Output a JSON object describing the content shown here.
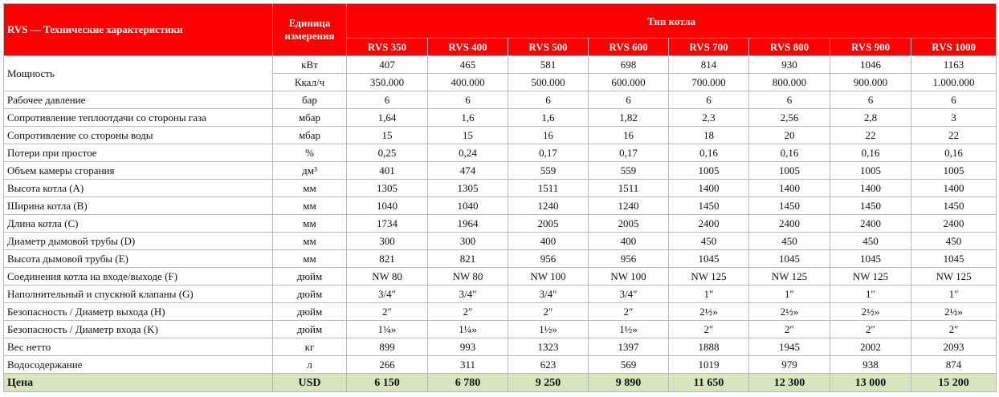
{
  "header": {
    "title": "RVS — Технические характеристики",
    "unit_label_line1": "Единица",
    "unit_label_line2": "измерения",
    "type_label": "Тип котла",
    "models": [
      "RVS 350",
      "RVS 400",
      "RVS 500",
      "RVS 600",
      "RVS 700",
      "RVS 800",
      "RVS 900",
      "RVS 1000"
    ]
  },
  "power": {
    "label": "Мощность",
    "rows": [
      {
        "unit": "кВт",
        "values": [
          "407",
          "465",
          "581",
          "698",
          "814",
          "930",
          "1046",
          "1163"
        ]
      },
      {
        "unit": "Ккал/ч",
        "values": [
          "350.000",
          "400.000",
          "500.000",
          "600.000",
          "700.000",
          "800.000",
          "900.000",
          "1.000.000"
        ]
      }
    ]
  },
  "rows": [
    {
      "label": "Рабочее давление",
      "unit": "бар",
      "values": [
        "6",
        "6",
        "6",
        "6",
        "6",
        "6",
        "6",
        "6"
      ]
    },
    {
      "label": "Сопротивление теплоотдачи со стороны газа",
      "unit": "мбар",
      "values": [
        "1,64",
        "1,6",
        "1,6",
        "1,82",
        "2,3",
        "2,56",
        "2,8",
        "3"
      ]
    },
    {
      "label": "Сопротивление со стороны воды",
      "unit": "мбар",
      "values": [
        "15",
        "15",
        "16",
        "16",
        "18",
        "20",
        "22",
        "22"
      ]
    },
    {
      "label": "Потери при простое",
      "unit": "%",
      "values": [
        "0,25",
        "0,24",
        "0,17",
        "0,17",
        "0,16",
        "0,16",
        "0,16",
        "0,16"
      ]
    },
    {
      "label": "Объем камеры сгорания",
      "unit": "дм³",
      "values": [
        "401",
        "474",
        "559",
        "559",
        "1005",
        "1005",
        "1005",
        "1005"
      ]
    },
    {
      "label": "Высота котла (A)",
      "unit": "мм",
      "values": [
        "1305",
        "1305",
        "1511",
        "1511",
        "1400",
        "1400",
        "1400",
        "1400"
      ]
    },
    {
      "label": "Ширина котла (B)",
      "unit": "мм",
      "values": [
        "1040",
        "1040",
        "1240",
        "1240",
        "1450",
        "1450",
        "1450",
        "1450"
      ]
    },
    {
      "label": "Длина котла (C)",
      "unit": "мм",
      "values": [
        "1734",
        "1964",
        "2005",
        "2005",
        "2400",
        "2400",
        "2400",
        "2400"
      ]
    },
    {
      "label": "Диаметр дымовой трубы (D)",
      "unit": "мм",
      "values": [
        "300",
        "300",
        "400",
        "400",
        "450",
        "450",
        "450",
        "450"
      ]
    },
    {
      "label": "Высота дымовой трубы (E)",
      "unit": "мм",
      "values": [
        "821",
        "821",
        "956",
        "956",
        "1045",
        "1045",
        "1045",
        "1045"
      ]
    },
    {
      "label": "Соединения котла на входе/выходе (F)",
      "unit": "дюйм",
      "values": [
        "NW 80",
        "NW 80",
        "NW 100",
        "NW 100",
        "NW 125",
        "NW 125",
        "NW 125",
        "NW 125"
      ]
    },
    {
      "label": "Наполнительный и спускной клапаны (G)",
      "unit": "дюйм",
      "values": [
        "3/4″",
        "3/4″",
        "3/4″",
        "3/4″",
        "1″",
        "1″",
        "1″",
        "1″"
      ]
    },
    {
      "label": "Безопасность / Диаметр выхода (H)",
      "unit": "дюйм",
      "values": [
        "2″",
        "2″",
        "2″",
        "2″",
        "2½»",
        "2½»",
        "2½»",
        "2½»"
      ]
    },
    {
      "label": "Безопасность / Диаметр входа (K)",
      "unit": "дюйм",
      "values": [
        "1¼»",
        "1¼»",
        "1½»",
        "1½»",
        "2″",
        "2″",
        "2″",
        "2″"
      ]
    },
    {
      "label": "Вес нетто",
      "unit": "кг",
      "values": [
        "899",
        "993",
        "1323",
        "1397",
        "1888",
        "1945",
        "2002",
        "2093"
      ]
    },
    {
      "label": "Водосодержание",
      "unit": "л",
      "values": [
        "266",
        "311",
        "623",
        "569",
        "1019",
        "979",
        "938",
        "874"
      ]
    }
  ],
  "price": {
    "label": "Цена",
    "unit": "USD",
    "values": [
      "6 150",
      "6 780",
      "9 250",
      "9 890",
      "11 650",
      "12 300",
      "13 000",
      "15 200"
    ]
  }
}
